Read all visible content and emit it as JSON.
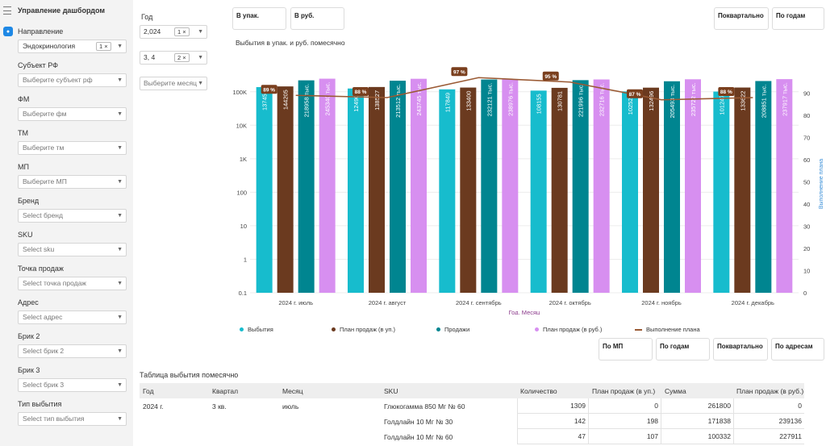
{
  "sidebar": {
    "header": "Управление дашбордом",
    "filters": [
      {
        "label": "Направление",
        "value": "Эндокринология",
        "chip": "1 ×",
        "filled": true
      },
      {
        "label": "Субъект РФ",
        "value": "Выберите субъект рф"
      },
      {
        "label": "ФМ",
        "value": "Выберите фм"
      },
      {
        "label": "ТМ",
        "value": "Выберите тм"
      },
      {
        "label": "МП",
        "value": "Выберите МП"
      },
      {
        "label": "Бренд",
        "value": "Select бренд"
      },
      {
        "label": "SKU",
        "value": "Select sku"
      },
      {
        "label": "Точка продаж",
        "value": "Select точка продаж"
      },
      {
        "label": "Адрес",
        "value": "Select адрес"
      },
      {
        "label": "Брик 2",
        "value": "Select брик 2"
      },
      {
        "label": "Брик 3",
        "value": "Select брик 3"
      },
      {
        "label": "Тип выбытия",
        "value": "Select тип выбытия"
      }
    ]
  },
  "period": {
    "year_label": "Год",
    "year_value": "2,024",
    "year_chip": "1 ×",
    "quarter_value": "3, 4",
    "quarter_chip": "2 ×",
    "month_placeholder": "Выберите месяц"
  },
  "toggles": {
    "units": "В упак.",
    "rub": "В руб.",
    "quarterly": "Поквартально",
    "by_years": "По годам"
  },
  "chart_data": {
    "type": "bar",
    "title": "Выбытия в упак. и руб. помесячно",
    "xlabel": "Год, Месяц",
    "ylabel_right": "Выполнение плана",
    "y_scale": "log",
    "y_ticks": [
      "0.1",
      "1",
      "10",
      "100",
      "1K",
      "10K",
      "100K"
    ],
    "y2_ticks": [
      "0",
      "10",
      "20",
      "30",
      "40",
      "50",
      "60",
      "70",
      "80",
      "90"
    ],
    "categories": [
      "2024 г. июль",
      "2024 г. август",
      "2024 г. сентябрь",
      "2024 г. октябрь",
      "2024 г. ноябрь",
      "2024 г. декабрь"
    ],
    "series": [
      {
        "name": "Выбытия",
        "color": "#17bccd",
        "values": [
          137457,
          124904,
          117849,
          108155,
          102520,
          101247
        ],
        "labels": [
          "137457",
          "124904",
          "117849",
          "108155",
          "102520",
          "101247"
        ]
      },
      {
        "name": "План продаж (в уп.)",
        "color": "#6b3a1f",
        "values": [
          144205,
          138527,
          133400,
          130781,
          132496,
          133622
        ],
        "labels": [
          "144205",
          "138527",
          "133400",
          "130781",
          "132496",
          "133622"
        ]
      },
      {
        "name": "Продажи",
        "color": "#008590",
        "values": [
          218958,
          213512,
          232121,
          221996,
          205493,
          208851
        ],
        "labels": [
          "218958 тыс.",
          "213512 тыс.",
          "232121 тыс.",
          "221996 тыс.",
          "205493 тыс.",
          "208851 тыс."
        ]
      },
      {
        "name": "План продаж (в руб.)",
        "color": "#d78ff0",
        "values": [
          245340,
          243745,
          238976,
          232716,
          235722,
          237917
        ],
        "labels": [
          "245340 тыс.",
          "243745 тыс.",
          "238976 тыс.",
          "232716 тыс.",
          "235722 тыс.",
          "237917 тыс."
        ]
      }
    ],
    "line": {
      "name": "Выполнение плана",
      "color": "#9a5a34",
      "values": [
        89,
        88,
        97,
        95,
        87,
        88
      ],
      "labels": [
        "89 %",
        "88 %",
        "97 %",
        "95 %",
        "87 %",
        "88 %"
      ]
    }
  },
  "lower_toggles": {
    "by_mp": "По МП",
    "by_years": "По годам",
    "quarterly": "Поквартально",
    "by_address": "По адресам"
  },
  "table": {
    "title": "Таблица выбытия помесячно",
    "headers": [
      "Год",
      "Квартал",
      "Месяц",
      "SKU",
      "Количество",
      "План продаж (в уп.)",
      "Сумма",
      "План продаж (в руб.)"
    ],
    "rows": [
      {
        "year": "2024 г.",
        "quarter": "3 кв.",
        "month": "июль",
        "sku": "Глюкогамма 850 Мг № 60",
        "qty": "1309",
        "plan_units": "0",
        "sum": "261800",
        "plan_rub": "0"
      },
      {
        "year": "",
        "quarter": "",
        "month": "",
        "sku": "Голдлайн 10 Мг № 30",
        "qty": "142",
        "plan_units": "198",
        "sum": "171838",
        "plan_rub": "239136"
      },
      {
        "year": "",
        "quarter": "",
        "month": "",
        "sku": "Голдлайн 10 Мг № 60",
        "qty": "47",
        "plan_units": "107",
        "sum": "100332",
        "plan_rub": "227911"
      }
    ]
  }
}
